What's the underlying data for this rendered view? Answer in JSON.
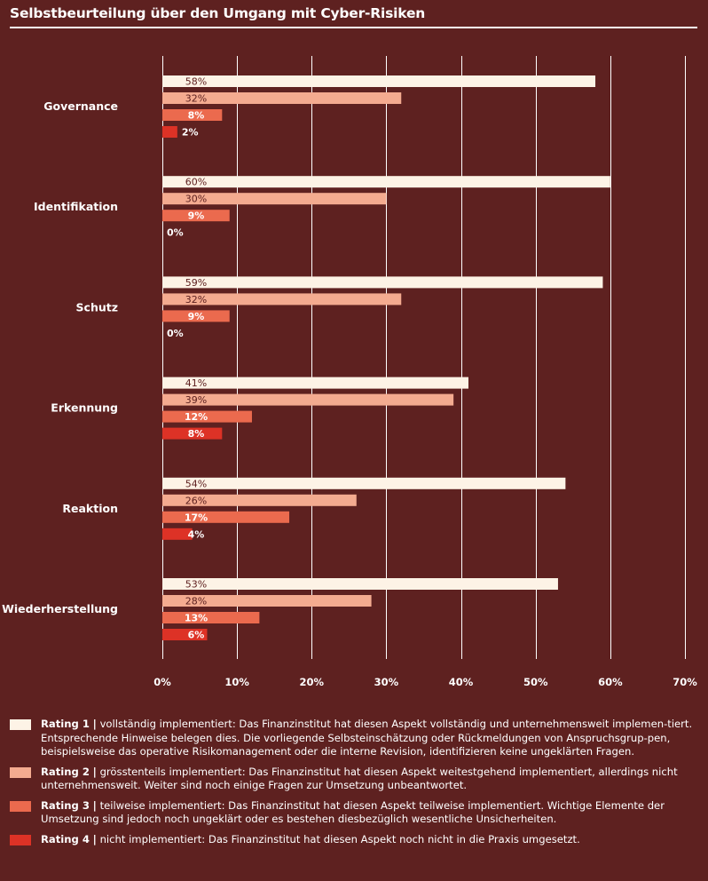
{
  "title": "Selbstbeurteilung über den Umgang mit Cyber-Risiken",
  "colors": {
    "background": "#5e2120",
    "rating1": "#fdf3e6",
    "rating2": "#f4ab90",
    "rating3": "#eb6a4e",
    "rating4": "#dd3226",
    "grid": "#ffffff",
    "label_dark": "#5e2120",
    "label_light": "#ffffff"
  },
  "chart_data": {
    "type": "bar",
    "orientation": "horizontal",
    "title": "Selbstbeurteilung über den Umgang mit Cyber-Risiken",
    "xlabel": "",
    "ylabel": "",
    "xlim": [
      0,
      70
    ],
    "x_ticks": [
      0,
      10,
      20,
      30,
      40,
      50,
      60,
      70
    ],
    "x_tick_labels": [
      "0%",
      "10%",
      "20%",
      "30%",
      "40%",
      "50%",
      "60%",
      "70%"
    ],
    "grid": true,
    "legend_position": "bottom",
    "categories": [
      "Governance",
      "Identifikation",
      "Schutz",
      "Erkennung",
      "Reaktion",
      "Wiederherstellung"
    ],
    "series": [
      {
        "name": "Rating 1",
        "values": [
          58,
          60,
          59,
          41,
          54,
          53
        ],
        "labels": [
          "58%",
          "60%",
          "59%",
          "41%",
          "54%",
          "53%"
        ]
      },
      {
        "name": "Rating 2",
        "values": [
          32,
          30,
          32,
          39,
          26,
          28
        ],
        "labels": [
          "32%",
          "30%",
          "32%",
          "39%",
          "26%",
          "28%"
        ]
      },
      {
        "name": "Rating 3",
        "values": [
          8,
          9,
          9,
          12,
          17,
          13
        ],
        "labels": [
          "8%",
          "9%",
          "9%",
          "12%",
          "17%",
          "13%"
        ]
      },
      {
        "name": "Rating 4",
        "values": [
          2,
          0,
          0,
          8,
          4,
          6
        ],
        "labels": [
          "2%",
          "0%",
          "0%",
          "8%",
          "4%",
          "6%"
        ]
      }
    ]
  },
  "legend": [
    {
      "label": "Rating 1",
      "separator": "|",
      "text": "vollständig implementiert: Das Finanzinstitut hat diesen Aspekt vollständig und unternehmensweit implemen-tiert. Entsprechende Hinweise belegen dies. Die vorliegende Selbsteinschätzung oder Rückmeldungen von Anspruchsgrup-pen, beispielsweise das operative Risikomanagement oder die interne Revision, identifizieren keine ungeklärten Fragen."
    },
    {
      "label": "Rating 2",
      "separator": "|",
      "text": "grösstenteils implementiert: Das Finanzinstitut hat diesen Aspekt weitestgehend implementiert, allerdings nicht unternehmensweit. Weiter sind noch einige Fragen zur Umsetzung unbeantwortet."
    },
    {
      "label": "Rating 3",
      "separator": "|",
      "text": "teilweise implementiert: Das Finanzinstitut hat diesen Aspekt teilweise implementiert. Wichtige Elemente der Umsetzung sind jedoch noch ungeklärt oder es bestehen diesbezüglich wesentliche Unsicherheiten."
    },
    {
      "label": "Rating 4",
      "separator": "|",
      "text": "nicht implementiert: Das Finanzinstitut hat diesen Aspekt noch nicht in die Praxis umgesetzt."
    }
  ]
}
